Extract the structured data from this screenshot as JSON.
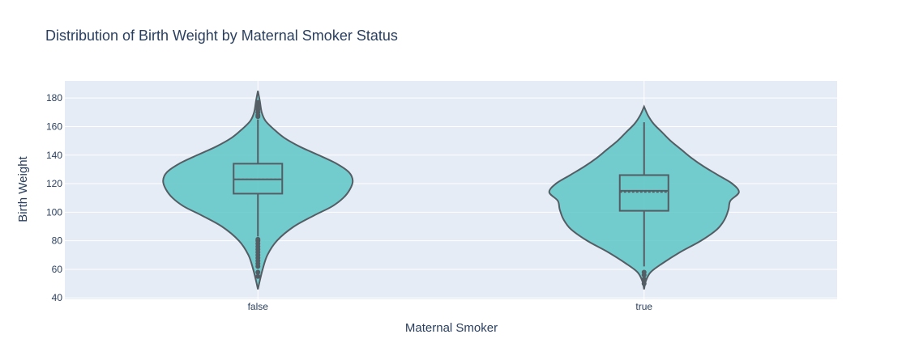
{
  "chart_data": {
    "type": "violin",
    "title": "Distribution of Birth Weight by Maternal Smoker Status",
    "xlabel": "Maternal Smoker",
    "ylabel": "Birth Weight",
    "categories": [
      "false",
      "true"
    ],
    "ylim": [
      39,
      192
    ],
    "yticks": [
      40,
      60,
      80,
      100,
      120,
      140,
      160,
      180
    ],
    "grid": true,
    "legend": "none",
    "colors": {
      "plot_bg": "#e5ecf6",
      "grid": "#ffffff",
      "fill": "#5ec6c6",
      "line": "#555d64",
      "text": "#2a3f5f"
    },
    "violins": [
      {
        "category": "false",
        "min": 46,
        "max": 185,
        "box": {
          "q1": 113,
          "median": 123,
          "q3": 134,
          "mean": 123.1,
          "lower_fence": 83,
          "upper_fence": 165
        },
        "outliers": [
          55,
          58,
          62,
          64,
          66,
          68,
          70,
          72,
          74,
          76,
          78,
          80,
          81,
          167,
          168,
          170,
          172,
          174,
          175,
          176,
          177
        ],
        "profile": [
          [
            46,
            0.0
          ],
          [
            52,
            0.02
          ],
          [
            60,
            0.05
          ],
          [
            70,
            0.1
          ],
          [
            80,
            0.2
          ],
          [
            90,
            0.38
          ],
          [
            98,
            0.6
          ],
          [
            104,
            0.78
          ],
          [
            110,
            0.9
          ],
          [
            116,
            0.97
          ],
          [
            122,
            1.0
          ],
          [
            128,
            0.96
          ],
          [
            134,
            0.83
          ],
          [
            140,
            0.64
          ],
          [
            146,
            0.44
          ],
          [
            152,
            0.28
          ],
          [
            158,
            0.17
          ],
          [
            164,
            0.08
          ],
          [
            170,
            0.04
          ],
          [
            178,
            0.02
          ],
          [
            185,
            0.0
          ]
        ]
      },
      {
        "category": "true",
        "min": 46,
        "max": 174,
        "box": {
          "q1": 101,
          "median": 115,
          "q3": 126,
          "mean": 114.1,
          "lower_fence": 62,
          "upper_fence": 163
        },
        "outliers": [
          50,
          53,
          56,
          58
        ],
        "profile": [
          [
            46,
            0.0
          ],
          [
            52,
            0.02
          ],
          [
            58,
            0.07
          ],
          [
            64,
            0.19
          ],
          [
            72,
            0.38
          ],
          [
            80,
            0.6
          ],
          [
            88,
            0.77
          ],
          [
            95,
            0.85
          ],
          [
            102,
            0.89
          ],
          [
            108,
            0.91
          ],
          [
            114,
            1.0
          ],
          [
            120,
            0.93
          ],
          [
            126,
            0.78
          ],
          [
            132,
            0.63
          ],
          [
            138,
            0.5
          ],
          [
            144,
            0.39
          ],
          [
            150,
            0.28
          ],
          [
            156,
            0.19
          ],
          [
            162,
            0.1
          ],
          [
            168,
            0.04
          ],
          [
            174,
            0.0
          ]
        ]
      }
    ]
  }
}
